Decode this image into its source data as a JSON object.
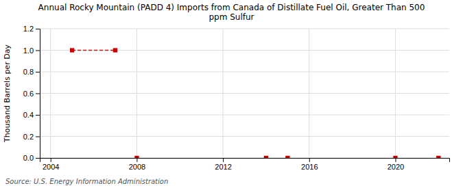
{
  "chart_data": {
    "type": "scatter",
    "title": "Annual Rocky Mountain (PADD 4) Imports from Canada of Distillate Fuel Oil, Greater Than 500\nppm Sulfur",
    "y_label": "Thousand Barrels per Day",
    "annotations": [
      "Source: U.S. Energy Information Administration"
    ],
    "series": [
      {
        "type": "scatter",
        "color": "#cc0000",
        "marker": "square",
        "x": [
          2005,
          2007,
          2008,
          2014,
          2015,
          2020,
          2022
        ],
        "values": [
          1.0,
          1.0,
          0.0,
          0.0,
          0.0,
          0.0,
          0.0
        ]
      },
      {
        "type": "line",
        "color": "#cc0000",
        "line_style": "dashed",
        "x": [
          2005,
          2007
        ],
        "values": [
          1.0,
          1.0
        ]
      }
    ],
    "xlim": [
      2003.5,
      2022.5
    ],
    "ylim": [
      0.0,
      1.2
    ],
    "xticks": [
      2004,
      2008,
      2012,
      2016,
      2020
    ],
    "yticks": [
      {
        "value": 0.0,
        "label": "0.0"
      },
      0.2,
      0.4,
      0.6,
      0.8,
      {
        "value": 1.0,
        "label": "1.0"
      },
      1.2
    ],
    "grid": true
  }
}
